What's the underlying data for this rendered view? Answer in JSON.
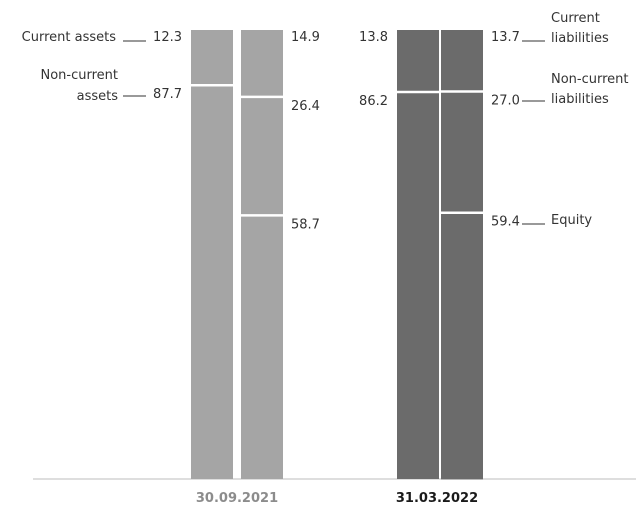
{
  "chart_data": {
    "type": "bar",
    "stacked": true,
    "percent": true,
    "ylim": [
      0,
      100
    ],
    "grid": false,
    "legend": "right",
    "categories": [
      "30.09.2021",
      "31.03.2022"
    ],
    "bar_groups": [
      {
        "date": "30.09.2021",
        "assets": {
          "current": 12.3,
          "non_current": 87.7
        },
        "liabilities": {
          "current": 14.9,
          "non_current": 26.4,
          "equity": 58.7
        }
      },
      {
        "date": "31.03.2022",
        "assets": {
          "current": 13.8,
          "non_current": 86.2
        },
        "liabilities": {
          "current": 13.7,
          "non_current": 27.0,
          "equity": 59.4
        }
      }
    ],
    "labels": {
      "current_assets": "Current assets",
      "non_current_assets": [
        "Non-current",
        "assets"
      ],
      "current_liabilities": [
        "Current",
        "liabilities"
      ],
      "non_current_liabilities": [
        "Non-current",
        "liabilities"
      ],
      "equity": "Equity"
    },
    "colors": {
      "period_1": "#a5a5a5",
      "period_2": "#6b6b6b",
      "period_1_label": "#8c8c8c",
      "period_2_label": "#1a1a1a",
      "axis": "#bdbdbd",
      "leader": "#333333"
    }
  }
}
